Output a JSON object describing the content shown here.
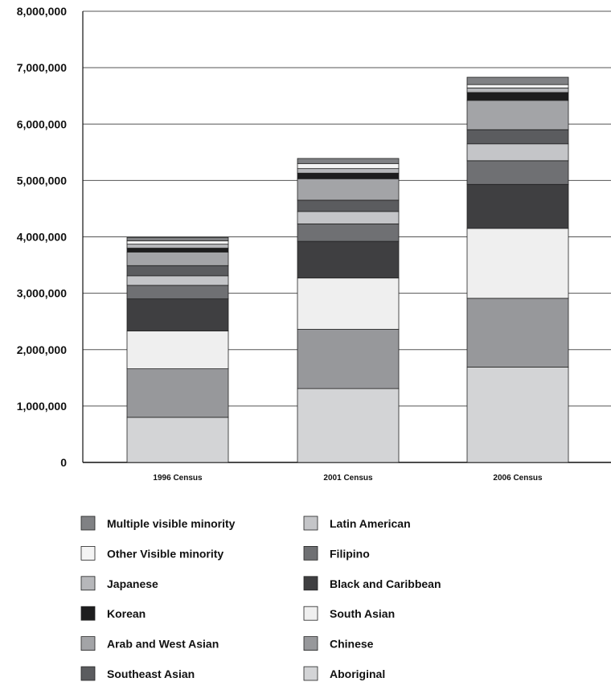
{
  "chart_data": {
    "type": "bar",
    "stacked": true,
    "title": "",
    "xlabel": "",
    "ylabel": "",
    "ylim": [
      0,
      8000000
    ],
    "yticks": [
      0,
      1000000,
      2000000,
      3000000,
      4000000,
      5000000,
      6000000,
      7000000,
      8000000
    ],
    "ytick_labels": [
      "0",
      "1,000,000",
      "2,000,000",
      "3,000,000",
      "4,000,000",
      "5,000,000",
      "6,000,000",
      "7,000,000",
      "8,000,000"
    ],
    "grid": true,
    "legend_position": "bottom",
    "categories": [
      "1996 Census",
      "2001 Census",
      "2006 Census"
    ],
    "series": [
      {
        "name": "Aboriginal",
        "color": "#d3d4d6",
        "values": [
          800000,
          1310000,
          1690000
        ]
      },
      {
        "name": "Chinese",
        "color": "#97989b",
        "values": [
          860000,
          1050000,
          1220000
        ]
      },
      {
        "name": "South Asian",
        "color": "#efefef",
        "values": [
          670000,
          910000,
          1240000
        ]
      },
      {
        "name": "Black and Caribbean",
        "color": "#3f3f41",
        "values": [
          570000,
          650000,
          780000
        ]
      },
      {
        "name": "Filipino",
        "color": "#6f7073",
        "values": [
          240000,
          310000,
          420000
        ]
      },
      {
        "name": "Latin American",
        "color": "#c4c5c8",
        "values": [
          170000,
          220000,
          300000
        ]
      },
      {
        "name": "Southeast Asian",
        "color": "#5b5c5f",
        "values": [
          180000,
          200000,
          250000
        ]
      },
      {
        "name": "Arab and West Asian",
        "color": "#a3a4a7",
        "values": [
          240000,
          380000,
          520000
        ]
      },
      {
        "name": "Korean",
        "color": "#1d1d1e",
        "values": [
          70000,
          100000,
          140000
        ]
      },
      {
        "name": "Japanese",
        "color": "#b6b7ba",
        "values": [
          70000,
          80000,
          80000
        ]
      },
      {
        "name": "Other Visible minority",
        "color": "#f4f4f4",
        "values": [
          60000,
          90000,
          60000
        ]
      },
      {
        "name": "Multiple visible minority",
        "color": "#808184",
        "values": [
          60000,
          90000,
          130000
        ]
      }
    ]
  },
  "legend": {
    "left": [
      "Multiple visible minority",
      "Other Visible minority",
      "Japanese",
      "Korean",
      "Arab and West Asian",
      "Southeast Asian"
    ],
    "right": [
      "Latin American",
      "Filipino",
      "Black and Caribbean",
      "South Asian",
      "Chinese",
      "Aboriginal"
    ]
  }
}
